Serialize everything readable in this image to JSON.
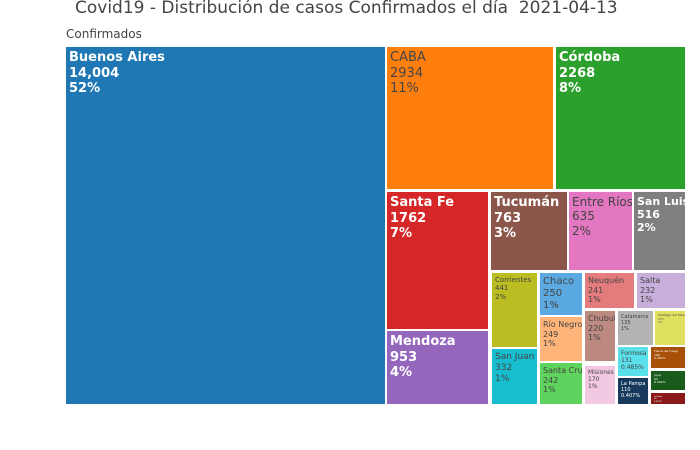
{
  "chart_data": {
    "type": "treemap",
    "title": "Covid19 - Distribución de casos Confirmados el día  2021-04-13",
    "root_label": "Confirmados",
    "items": [
      {
        "name": "Buenos Aires",
        "value": "14,004",
        "pct": "52%",
        "color": "#1f77b4"
      },
      {
        "name": "CABA",
        "value": "2934",
        "pct": "11%",
        "color": "#ff7f0e"
      },
      {
        "name": "Córdoba",
        "value": "2268",
        "pct": "8%",
        "color": "#2ca02c"
      },
      {
        "name": "Santa Fe",
        "value": "1762",
        "pct": "7%",
        "color": "#d62728"
      },
      {
        "name": "Mendoza",
        "value": "953",
        "pct": "4%",
        "color": "#9467bd"
      },
      {
        "name": "Tucumán",
        "value": "763",
        "pct": "3%",
        "color": "#8c564b"
      },
      {
        "name": "Entre Ríos",
        "value": "635",
        "pct": "2%",
        "color": "#e377c2"
      },
      {
        "name": "San Luis",
        "value": "516",
        "pct": "2%",
        "color": "#7f7f7f"
      },
      {
        "name": "Corrientes",
        "value": "441",
        "pct": "2%",
        "color": "#bcbd22"
      },
      {
        "name": "San Juan",
        "value": "332",
        "pct": "1%",
        "color": "#17becf"
      },
      {
        "name": "Chaco",
        "value": "250",
        "pct": "1%",
        "color": "#5aa9e0"
      },
      {
        "name": "Río Negro",
        "value": "249",
        "pct": "1%",
        "color": "#ffb479"
      },
      {
        "name": "Santa Cruz",
        "value": "242",
        "pct": "1%",
        "color": "#5ed35e"
      },
      {
        "name": "Neuquén",
        "value": "241",
        "pct": "1%",
        "color": "#e47b7c"
      },
      {
        "name": "Salta",
        "value": "232",
        "pct": "1%",
        "color": "#c7aedb"
      },
      {
        "name": "Chubut",
        "value": "220",
        "pct": "1%",
        "color": "#bc8a80"
      },
      {
        "name": "Misiones",
        "value": "170",
        "pct": "1%",
        "color": "#f3c8e2"
      },
      {
        "name": "Catamarca",
        "value": "135",
        "pct": "1%",
        "color": "#b3b3b3"
      },
      {
        "name": "Santiago del Estero",
        "value": "137",
        "pct": "1%",
        "color": "#e0e060"
      },
      {
        "name": "Formosa",
        "value": "131",
        "pct": "0.485%",
        "color": "#5ae0ea"
      },
      {
        "name": "La Pampa",
        "value": "110",
        "pct": "0.407%",
        "color": "#173a5c"
      },
      {
        "name": "Tierra del Fuego",
        "value": "108",
        "pct": "0.400%",
        "color": "#a65008"
      },
      {
        "name": "Jujuy",
        "value": "93",
        "pct": "0.344%",
        "color": "#1a5a1a"
      },
      {
        "name": "La Rioja",
        "value": "60",
        "pct": "0.222%",
        "color": "#8a1a1a"
      }
    ]
  }
}
